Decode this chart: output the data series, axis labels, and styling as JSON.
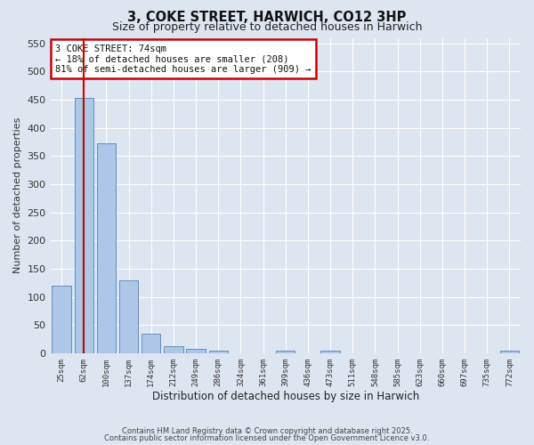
{
  "title": "3, COKE STREET, HARWICH, CO12 3HP",
  "subtitle": "Size of property relative to detached houses in Harwich",
  "xlabel": "Distribution of detached houses by size in Harwich",
  "ylabel": "Number of detached properties",
  "bins": [
    "25sqm",
    "62sqm",
    "100sqm",
    "137sqm",
    "174sqm",
    "212sqm",
    "249sqm",
    "286sqm",
    "324sqm",
    "361sqm",
    "399sqm",
    "436sqm",
    "473sqm",
    "511sqm",
    "548sqm",
    "585sqm",
    "623sqm",
    "660sqm",
    "697sqm",
    "735sqm",
    "772sqm"
  ],
  "values": [
    120,
    453,
    372,
    130,
    35,
    13,
    7,
    5,
    0,
    0,
    4,
    0,
    4,
    0,
    0,
    0,
    0,
    0,
    0,
    0,
    5
  ],
  "bar_color": "#aec6e8",
  "bar_edge_color": "#5b8fc9",
  "red_line_x": 1.5,
  "annotation_title": "3 COKE STREET: 74sqm",
  "annotation_line1": "← 18% of detached houses are smaller (208)",
  "annotation_line2": "81% of semi-detached houses are larger (909) →",
  "annotation_color": "#cc0000",
  "ylim": [
    0,
    560
  ],
  "yticks": [
    0,
    50,
    100,
    150,
    200,
    250,
    300,
    350,
    400,
    450,
    500,
    550
  ],
  "background_color": "#dde5f0",
  "grid_color": "#ffffff",
  "footer1": "Contains HM Land Registry data © Crown copyright and database right 2025.",
  "footer2": "Contains public sector information licensed under the Open Government Licence v3.0."
}
